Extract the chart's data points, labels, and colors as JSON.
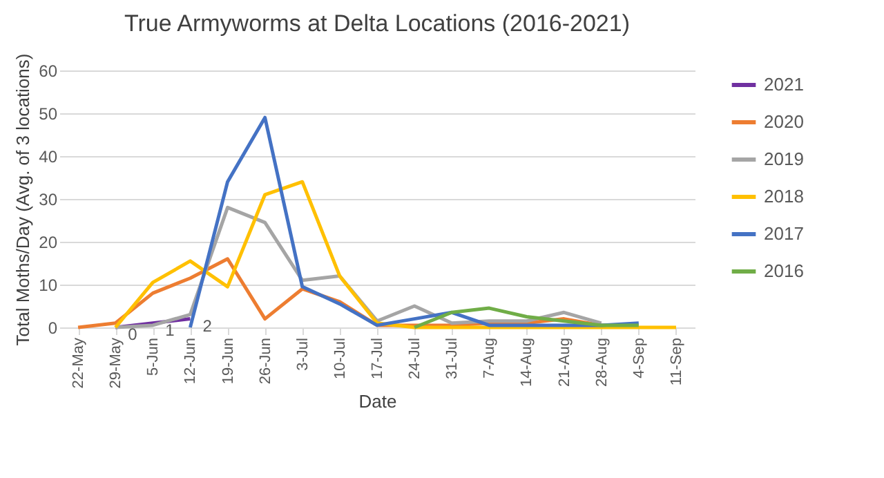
{
  "chart_data": {
    "type": "line",
    "title": "True Armyworms at Delta Locations (2016-2021)",
    "xlabel": "Date",
    "ylabel": "Total Moths/Day (Avg. of 3 locations)",
    "categories": [
      "22-May",
      "29-May",
      "5-Jun",
      "12-Jun",
      "19-Jun",
      "26-Jun",
      "3-Jul",
      "10-Jul",
      "17-Jul",
      "24-Jul",
      "31-Jul",
      "7-Aug",
      "14-Aug",
      "21-Aug",
      "28-Aug",
      "4-Sep",
      "11-Sep"
    ],
    "series": [
      {
        "name": "2021",
        "color": "#7030a0",
        "values": [
          null,
          0,
          1,
          2,
          null,
          null,
          null,
          null,
          null,
          null,
          null,
          null,
          null,
          null,
          null,
          null,
          null
        ],
        "value_labels": [
          null,
          "0",
          "1",
          "2",
          null,
          null,
          null,
          null,
          null,
          null,
          null,
          null,
          null,
          null,
          null,
          null,
          null
        ]
      },
      {
        "name": "2020",
        "color": "#ed7d31",
        "values": [
          0,
          1,
          8,
          11.5,
          16,
          2,
          9,
          6,
          0.5,
          0.5,
          0.5,
          1,
          1,
          2,
          0.5,
          0.5,
          null
        ]
      },
      {
        "name": "2019",
        "color": "#a5a5a5",
        "values": [
          null,
          0,
          0.5,
          3,
          28,
          24.5,
          11,
          12,
          1.5,
          5,
          1,
          1.5,
          1.5,
          3.5,
          1,
          null,
          null
        ]
      },
      {
        "name": "2018",
        "color": "#ffc000",
        "values": [
          null,
          0,
          10.5,
          15.5,
          9.5,
          31,
          34,
          12,
          1,
          0,
          0,
          0,
          0,
          0,
          0,
          0,
          0
        ]
      },
      {
        "name": "2017",
        "color": "#4472c4",
        "values": [
          null,
          null,
          null,
          0,
          34,
          49,
          9.5,
          5.5,
          0.5,
          2,
          3.5,
          0.5,
          0.5,
          0.5,
          0.5,
          1,
          null
        ]
      },
      {
        "name": "2016",
        "color": "#70ad47",
        "values": [
          null,
          null,
          null,
          null,
          null,
          null,
          null,
          null,
          null,
          0,
          3.5,
          4.5,
          2.5,
          1.5,
          0.5,
          0.5,
          null
        ]
      }
    ],
    "ylim": [
      0,
      60
    ],
    "yticks": [
      0,
      10,
      20,
      30,
      40,
      50,
      60
    ],
    "grid": "y",
    "legend": "right"
  }
}
